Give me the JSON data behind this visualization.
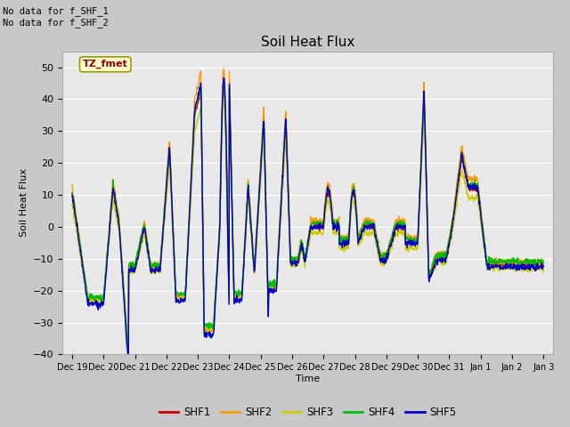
{
  "title": "Soil Heat Flux",
  "ylabel": "Soil Heat Flux",
  "xlabel": "Time",
  "ylim": [
    -40,
    55
  ],
  "yticks": [
    -40,
    -30,
    -20,
    -10,
    0,
    10,
    20,
    30,
    40,
    50
  ],
  "plot_bg": "#e8e8e8",
  "fig_bg": "#d0d0d0",
  "no_data_text": [
    "No data for f_SHF_1",
    "No data for f_SHF_2"
  ],
  "tz_label": "TZ_fmet",
  "legend_entries": [
    "SHF1",
    "SHF2",
    "SHF3",
    "SHF4",
    "SHF5"
  ],
  "line_colors": [
    "#cc0000",
    "#ff9900",
    "#cccc00",
    "#00bb00",
    "#0000cc"
  ],
  "line_width": 1.0,
  "x_tick_labels": [
    "Dec 19",
    "Dec 20",
    "Dec 21",
    "Dec 22",
    "Dec 23",
    "Dec 24",
    "Dec 25",
    "Dec 26",
    "Dec 27",
    "Dec 28",
    "Dec 29",
    "Dec 30",
    "Dec 31",
    "Jan 1",
    "Jan 2",
    "Jan 3"
  ],
  "num_points": 1500
}
